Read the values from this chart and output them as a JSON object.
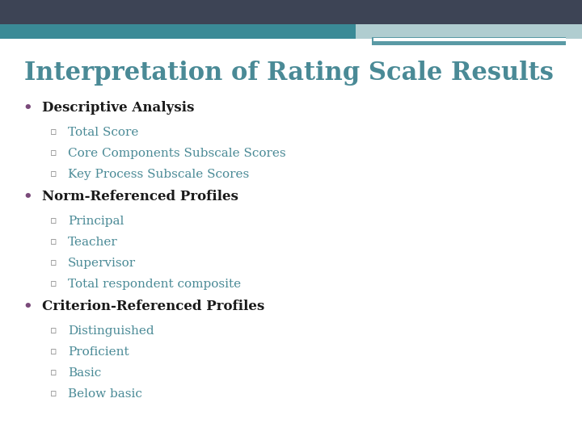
{
  "title": "Interpretation of Rating Scale Results",
  "title_color": "#4a8a96",
  "title_fontsize": 22,
  "background_color": "#ffffff",
  "header_bar_color": "#3d4455",
  "header_bar2_color": "#3a8a96",
  "header_accent1_color": "#b0cdd0",
  "header_accent2_color": "#5a9aa5",
  "bullet_color": "#7a4a7a",
  "sub_bullet_color": "#888888",
  "items": [
    {
      "level": 1,
      "text": "Descriptive Analysis",
      "bold": true,
      "color": "#1a1a1a"
    },
    {
      "level": 2,
      "text": "Total Score",
      "bold": false,
      "color": "#4a8a96"
    },
    {
      "level": 2,
      "text": "Core Components Subscale Scores",
      "bold": false,
      "color": "#4a8a96"
    },
    {
      "level": 2,
      "text": "Key Process Subscale Scores",
      "bold": false,
      "color": "#4a8a96"
    },
    {
      "level": 1,
      "text": "Norm-Referenced Profiles",
      "bold": true,
      "color": "#1a1a1a"
    },
    {
      "level": 2,
      "text": "Principal",
      "bold": false,
      "color": "#4a8a96"
    },
    {
      "level": 2,
      "text": "Teacher",
      "bold": false,
      "color": "#4a8a96"
    },
    {
      "level": 2,
      "text": "Supervisor",
      "bold": false,
      "color": "#4a8a96"
    },
    {
      "level": 2,
      "text": "Total respondent composite",
      "bold": false,
      "color": "#4a8a96"
    },
    {
      "level": 1,
      "text": "Criterion-Referenced Profiles",
      "bold": true,
      "color": "#1a1a1a"
    },
    {
      "level": 2,
      "text": "Distinguished",
      "bold": false,
      "color": "#4a8a96"
    },
    {
      "level": 2,
      "text": "Proficient",
      "bold": false,
      "color": "#4a8a96"
    },
    {
      "level": 2,
      "text": "Basic",
      "bold": false,
      "color": "#4a8a96"
    },
    {
      "level": 2,
      "text": "Below basic",
      "bold": false,
      "color": "#4a8a96"
    }
  ]
}
